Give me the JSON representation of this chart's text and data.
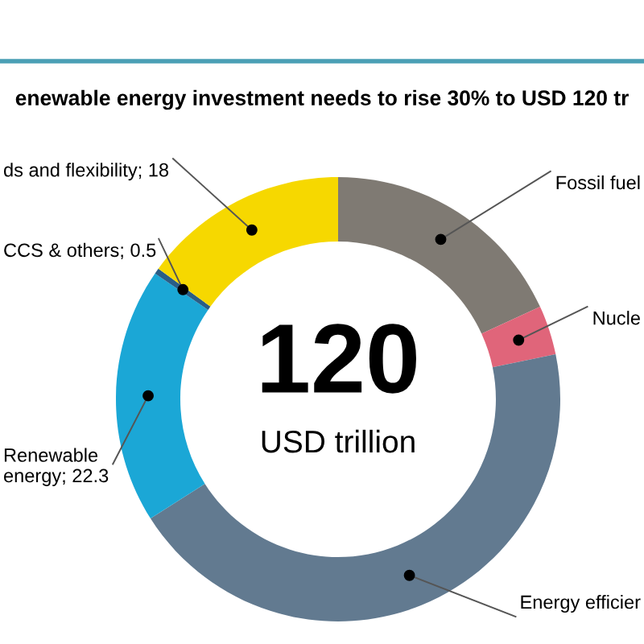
{
  "chart_data": {
    "type": "donut",
    "title": "enewable energy investment needs to rise 30% to USD 120 tr",
    "categories": [
      "Fossil fuel",
      "Nucle",
      "Energy efficier",
      "Renewable energy",
      "CCS & others",
      "ds and flexibility"
    ],
    "values": [
      21.8,
      4.3,
      53.1,
      22.3,
      0.5,
      18
    ],
    "colors": [
      "#7f7a73",
      "#e0657a",
      "#627a90",
      "#1ba7d6",
      "#2a5d86",
      "#f6d800"
    ],
    "value_labels": [
      null,
      null,
      null,
      "22.3",
      "0.5",
      "18"
    ],
    "annotations": [
      "120",
      "USD trillion"
    ]
  }
}
